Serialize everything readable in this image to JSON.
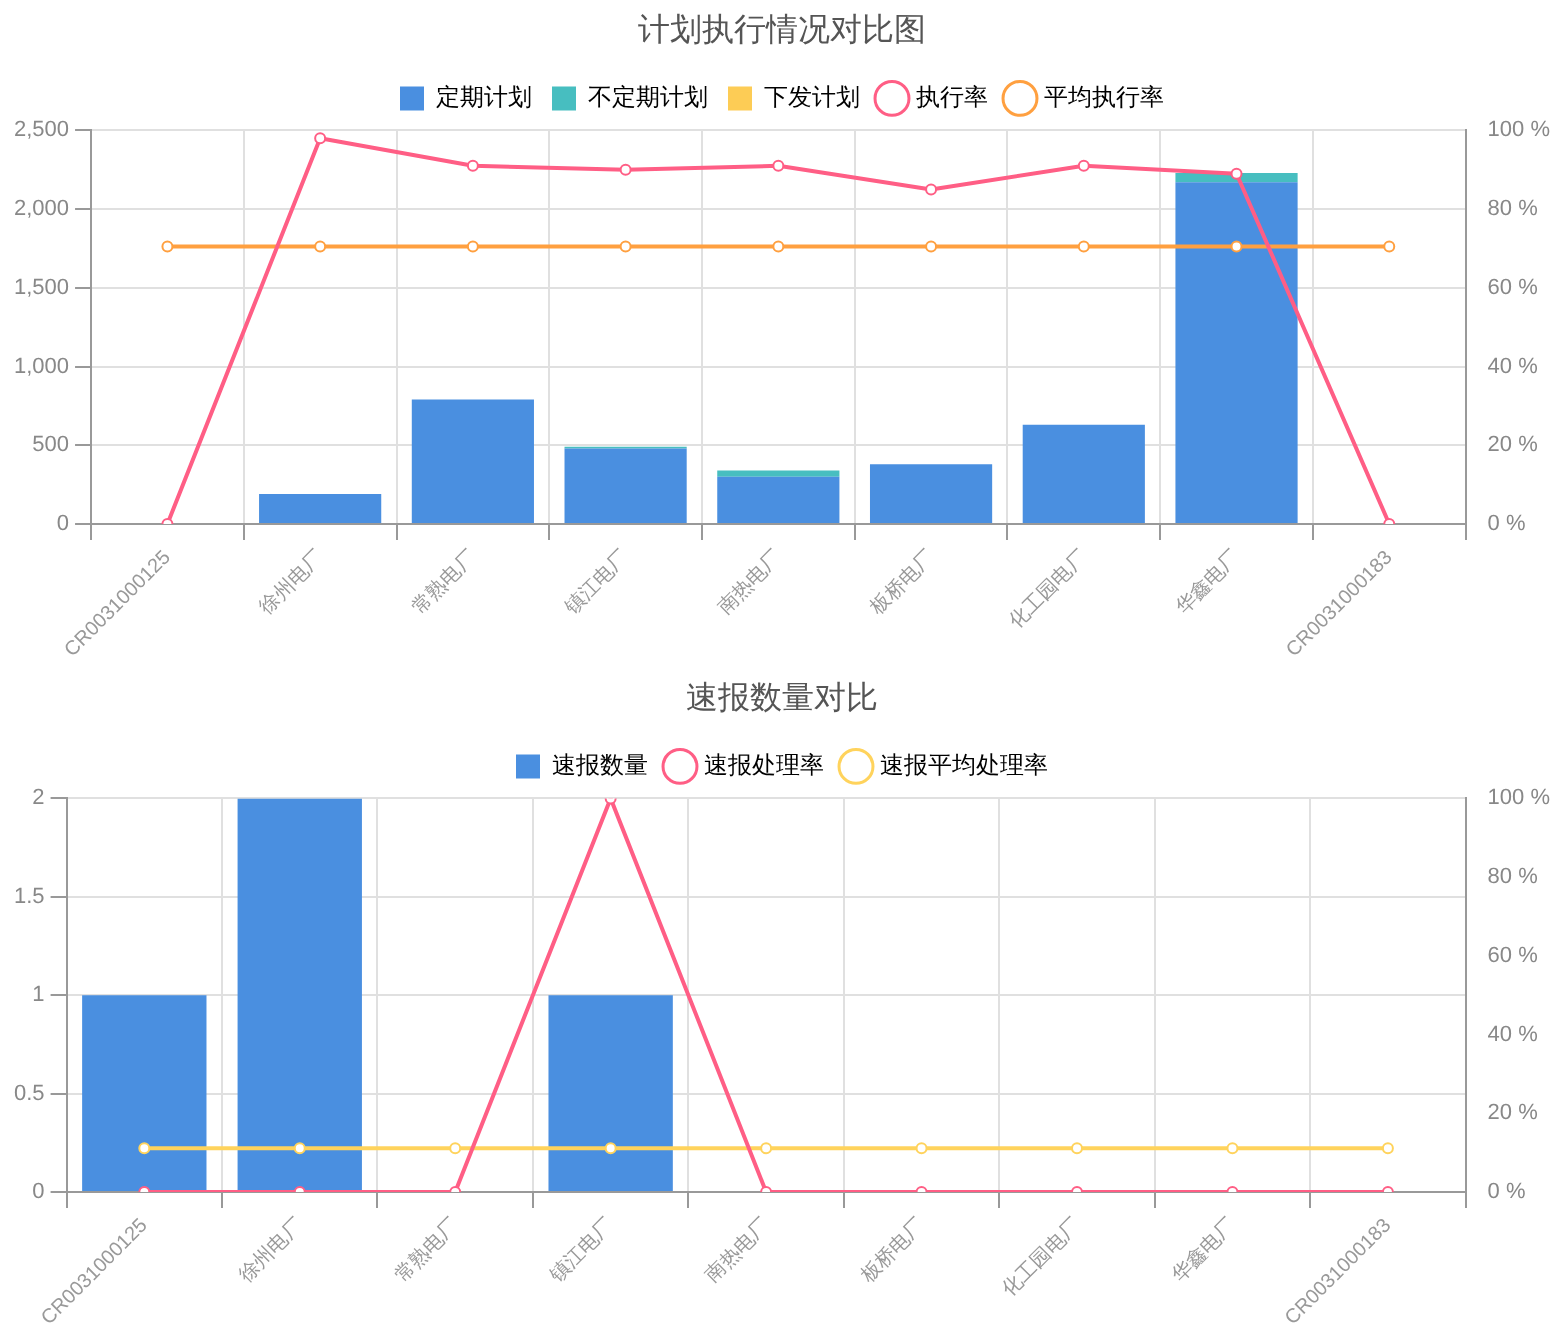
{
  "chart_data": [
    {
      "type": "bar",
      "title": "计划执行情况对比图",
      "categories": [
        "CR0031000125",
        "徐州电厂",
        "常熟电厂",
        "镇江电厂",
        "南热电厂",
        "板桥电厂",
        "化工园电厂",
        "华鑫电厂",
        "CR0031000183"
      ],
      "stacked": true,
      "series": [
        {
          "name": "定期计划",
          "color": "#4a8fe0",
          "values": [
            0,
            190,
            790,
            480,
            300,
            380,
            630,
            2170,
            0
          ]
        },
        {
          "name": "不定期计划",
          "color": "#47bec0",
          "values": [
            0,
            0,
            0,
            10,
            40,
            0,
            0,
            60,
            0
          ]
        },
        {
          "name": "下发计划",
          "color": "#fdcc55",
          "values": [
            0,
            0,
            0,
            0,
            0,
            0,
            0,
            0,
            0
          ]
        },
        {
          "name": "执行率",
          "type": "line",
          "axis": "y2",
          "color": "#ff5e85",
          "values": [
            0,
            98,
            91,
            90,
            91,
            85,
            91,
            89,
            0
          ]
        },
        {
          "name": "平均执行率",
          "type": "line",
          "axis": "y2",
          "color": "#ffa040",
          "values": [
            70.5,
            70.5,
            70.5,
            70.5,
            70.5,
            70.5,
            70.5,
            70.5,
            70.5
          ]
        }
      ],
      "ylim": [
        0,
        2500
      ],
      "yticks": [
        0,
        {
          "value": 500,
          "label": "500"
        },
        {
          "value": 1000,
          "label": "1,000"
        },
        {
          "value": 1500,
          "label": "1,500"
        },
        {
          "value": 2000,
          "label": "2,000"
        },
        {
          "value": 2500,
          "label": "2,500"
        }
      ],
      "y2lim": [
        0,
        100
      ],
      "y2ticks": [
        {
          "value": 0,
          "label": "0 %"
        },
        {
          "value": 20,
          "label": "20 %"
        },
        {
          "value": 40,
          "label": "40 %"
        },
        {
          "value": 60,
          "label": "60 %"
        },
        {
          "value": 80,
          "label": "80 %"
        },
        {
          "value": 100,
          "label": "100 %"
        }
      ],
      "grid": true,
      "legend": "top",
      "marker": "circle"
    },
    {
      "type": "bar",
      "title": "速报数量对比",
      "categories": [
        "CR0031000125",
        "徐州电厂",
        "常熟电厂",
        "镇江电厂",
        "南热电厂",
        "板桥电厂",
        "化工园电厂",
        "华鑫电厂",
        "CR0031000183"
      ],
      "series": [
        {
          "name": "速报数量",
          "color": "#4a8fe0",
          "values": [
            1,
            2,
            0,
            1,
            0,
            0,
            0,
            0,
            0
          ]
        },
        {
          "name": "速报处理率",
          "type": "line",
          "axis": "y2",
          "color": "#ff5e85",
          "values": [
            0,
            0,
            0,
            100,
            0,
            0,
            0,
            0,
            0
          ]
        },
        {
          "name": "速报平均处理率",
          "type": "line",
          "axis": "y2",
          "color": "#ffd35c",
          "values": [
            11.1,
            11.1,
            11.1,
            11.1,
            11.1,
            11.1,
            11.1,
            11.1,
            11.1
          ]
        }
      ],
      "ylim": [
        0,
        2
      ],
      "yticks": [
        0,
        0.5,
        1,
        1.5,
        2
      ],
      "y2lim": [
        0,
        100
      ],
      "y2ticks": [
        {
          "value": 0,
          "label": "0 %"
        },
        {
          "value": 20,
          "label": "20 %"
        },
        {
          "value": 40,
          "label": "40 %"
        },
        {
          "value": 60,
          "label": "60 %"
        },
        {
          "value": 80,
          "label": "80 %"
        },
        {
          "value": 100,
          "label": "100 %"
        }
      ],
      "grid": true,
      "legend": "top",
      "marker": "circle"
    }
  ]
}
